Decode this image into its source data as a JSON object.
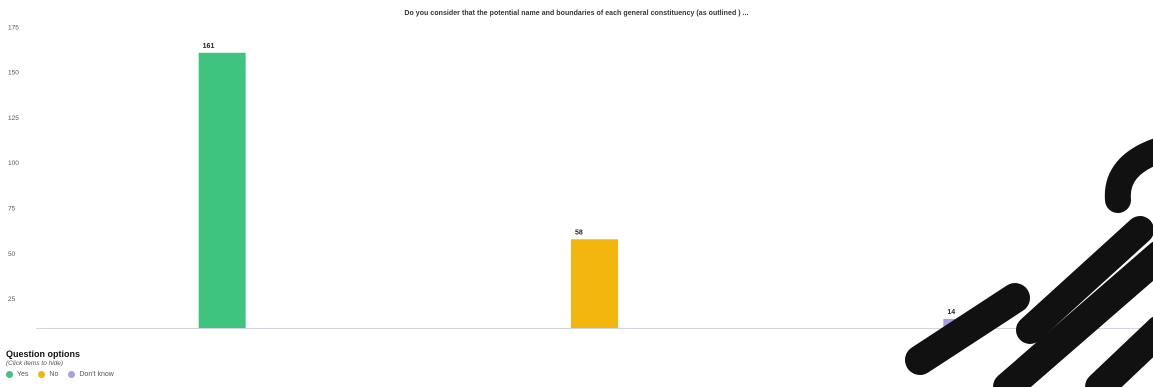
{
  "chart_data": {
    "type": "bar",
    "title": "Do you consider that the potential name and boundaries of each general constituency (as outlined ) ...",
    "categories": [
      "Yes",
      "No",
      "Don't know"
    ],
    "values": [
      161,
      58,
      14
    ],
    "colors": [
      "#3ec47e",
      "#f2b60c",
      "#a89ce6"
    ],
    "ylim": [
      9,
      178
    ],
    "yticks": [
      25,
      50,
      75,
      100,
      125,
      150,
      175
    ],
    "xlabel": "",
    "ylabel": "",
    "grid": false,
    "legend_placement": "bottom-left"
  },
  "legend": {
    "title": "Question options",
    "subtitle": "(Click items to hide)",
    "items": [
      {
        "label": "Yes",
        "color": "#3ec47e"
      },
      {
        "label": "No",
        "color": "#f2b60c"
      },
      {
        "label": "Don't know",
        "color": "#a89ce6"
      }
    ]
  },
  "watermark": {
    "color": "#111111"
  }
}
